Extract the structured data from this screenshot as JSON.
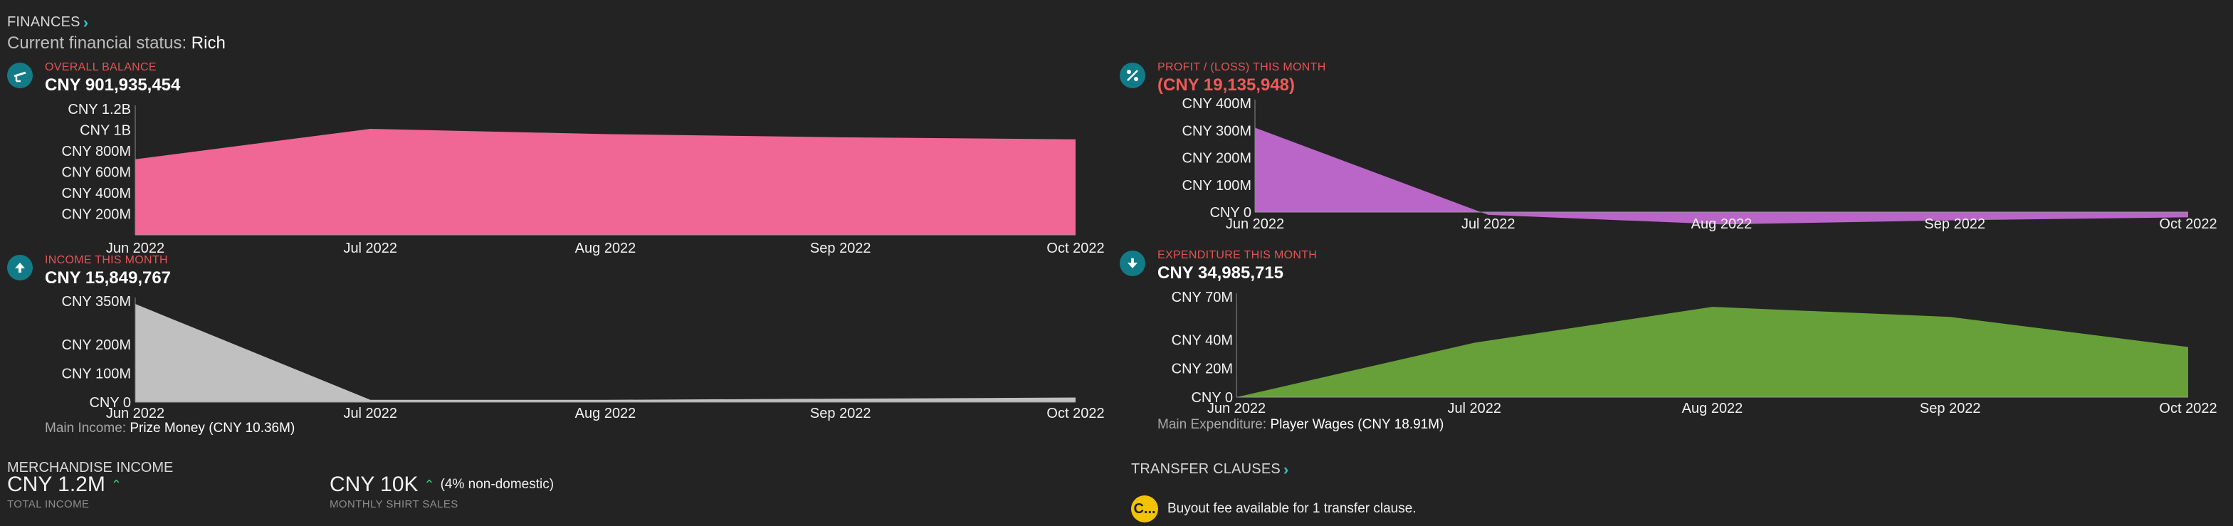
{
  "header": {
    "finances_label": "FINANCES",
    "status_prefix": "Current financial status:",
    "status_value": "Rich"
  },
  "cards": {
    "balance": {
      "label": "OVERALL BALANCE",
      "value": "CNY 901,935,454",
      "icon": "scale-icon",
      "color": "#f06695",
      "y_ticks": [
        "CNY 200M",
        "CNY 400M",
        "CNY 600M",
        "CNY 800M",
        "CNY 1B",
        "CNY 1.2B"
      ],
      "x_ticks": [
        "Jun 2022",
        "Jul 2022",
        "Aug 2022",
        "Sep 2022",
        "Oct 2022"
      ]
    },
    "profit": {
      "label": "PROFIT / (LOSS) THIS MONTH",
      "value": "(CNY 19,135,948)",
      "icon": "percent-icon",
      "color": "#b966c8",
      "y_ticks": [
        "CNY 0",
        "CNY 100M",
        "CNY 200M",
        "CNY 300M",
        "CNY 400M"
      ],
      "x_ticks": [
        "Jun 2022",
        "Jul 2022",
        "Aug 2022",
        "Sep 2022",
        "Oct 2022"
      ]
    },
    "income": {
      "label": "INCOME THIS MONTH",
      "value": "CNY 15,849,767",
      "icon": "arrow-up-icon",
      "color": "#c0c0c0",
      "y_ticks": [
        "CNY 0",
        "CNY 100M",
        "CNY 200M",
        "CNY 350M"
      ],
      "x_ticks": [
        "Jun 2022",
        "Jul 2022",
        "Aug 2022",
        "Sep 2022",
        "Oct 2022"
      ],
      "main_label": "Main Income:",
      "main_value": "Prize Money (CNY 10.36M)"
    },
    "expenditure": {
      "label": "EXPENDITURE THIS MONTH",
      "value": "CNY 34,985,715",
      "icon": "arrow-down-icon",
      "color": "#679f38",
      "y_ticks": [
        "CNY 0",
        "CNY 20M",
        "CNY 40M",
        "CNY 70M"
      ],
      "x_ticks": [
        "Jun 2022",
        "Jul 2022",
        "Aug 2022",
        "Sep 2022",
        "Oct 2022"
      ],
      "main_label": "Main Expenditure:",
      "main_value": "Player Wages (CNY 18.91M)"
    }
  },
  "chart_data": [
    {
      "type": "area",
      "name_ref": "OVERALL BALANCE",
      "x": [
        "Jun 2022",
        "Jul 2022",
        "Aug 2022",
        "Sep 2022",
        "Oct 2022"
      ],
      "values": [
        720,
        1010,
        960,
        930,
        910
      ],
      "unit": "CNY M",
      "ylim": [
        0,
        1200
      ],
      "y_ticks": [
        200,
        400,
        600,
        800,
        1000,
        1200
      ],
      "color": "#f06695"
    },
    {
      "type": "area",
      "name_ref": "PROFIT / (LOSS) THIS MONTH",
      "x": [
        "Jun 2022",
        "Jul 2022",
        "Aug 2022",
        "Sep 2022",
        "Oct 2022"
      ],
      "values": [
        310,
        -10,
        -45,
        -30,
        -19
      ],
      "unit": "CNY M",
      "ylim": [
        0,
        400
      ],
      "y_ticks": [
        0,
        100,
        200,
        300,
        400
      ],
      "color": "#b966c8"
    },
    {
      "type": "area",
      "name_ref": "INCOME THIS MONTH",
      "x": [
        "Jun 2022",
        "Jul 2022",
        "Aug 2022",
        "Sep 2022",
        "Oct 2022"
      ],
      "values": [
        340,
        8,
        8,
        12,
        16
      ],
      "unit": "CNY M",
      "ylim": [
        0,
        350
      ],
      "y_ticks": [
        0,
        100,
        200,
        350
      ],
      "color": "#c0c0c0"
    },
    {
      "type": "area",
      "name_ref": "EXPENDITURE THIS MONTH",
      "x": [
        "Jun 2022",
        "Jul 2022",
        "Aug 2022",
        "Sep 2022",
        "Oct 2022"
      ],
      "values": [
        0,
        38,
        63,
        56,
        35
      ],
      "unit": "CNY M",
      "ylim": [
        0,
        70
      ],
      "y_ticks": [
        0,
        20,
        40,
        70
      ],
      "color": "#679f38"
    }
  ],
  "merch": {
    "title": "MERCHANDISE INCOME",
    "total_value": "CNY 1.2M",
    "total_caption": "TOTAL INCOME",
    "shirt_value": "CNY 10K",
    "shirt_note": "(4% non-domestic)",
    "shirt_caption": "MONTHLY SHIRT SALES"
  },
  "transfer": {
    "title": "TRANSFER CLAUSES",
    "badge": "C...",
    "message": "Buyout fee available for 1 transfer clause."
  }
}
